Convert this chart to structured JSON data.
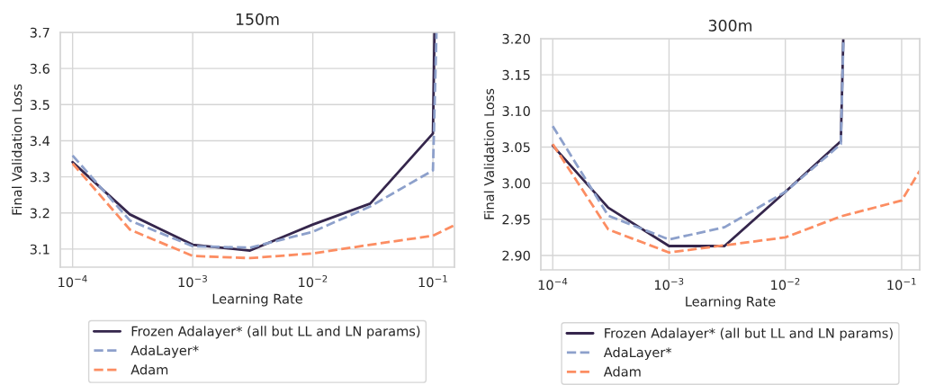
{
  "chart_data": [
    {
      "type": "line",
      "title": "150m",
      "xlabel": "Learning Rate",
      "ylabel": "Final Validation Loss",
      "log": "x",
      "grid": true,
      "legend": "bottom",
      "xlim": [
        7.9e-05,
        0.151
      ],
      "ylim": [
        3.05,
        3.7
      ],
      "xticks": [
        {
          "value": 0.0001,
          "label": "10$^{−4}$"
        },
        {
          "value": 0.001,
          "label": "10$^{−3}$"
        },
        {
          "value": 0.01,
          "label": "10$^{−2}$"
        },
        {
          "value": 0.1,
          "label": "10$^{−1}$"
        }
      ],
      "yticks": [
        3.1,
        3.2,
        3.3,
        3.4,
        3.5,
        3.6,
        3.7
      ],
      "series": [
        {
          "name": "Frozen Adalayer* (all but LL and LN params)",
          "color": "#35264c",
          "line_style": "solid",
          "x": [
            0.0001,
            0.0003,
            0.001,
            0.003,
            0.01,
            0.03,
            0.1,
            0.103
          ],
          "values": [
            3.341,
            3.196,
            3.112,
            3.096,
            3.168,
            3.226,
            3.42,
            3.7
          ]
        },
        {
          "name": "AdaLayer*",
          "color": "#8da0cb",
          "line_style": "dashed",
          "x": [
            0.0001,
            0.0003,
            0.001,
            0.003,
            0.01,
            0.03,
            0.1,
            0.107
          ],
          "values": [
            3.359,
            3.179,
            3.108,
            3.104,
            3.148,
            3.218,
            3.318,
            3.7
          ]
        },
        {
          "name": "Adam",
          "color": "#fc8d62",
          "line_style": "dashed",
          "x": [
            0.0001,
            0.0003,
            0.001,
            0.003,
            0.01,
            0.03,
            0.1,
            0.151
          ],
          "values": [
            3.337,
            3.154,
            3.081,
            3.075,
            3.088,
            3.112,
            3.137,
            3.166
          ]
        }
      ]
    },
    {
      "type": "line",
      "title": "300m",
      "xlabel": "Learning Rate",
      "ylabel": "Final Validation Loss",
      "log": "x",
      "grid": true,
      "legend": "bottom",
      "xlim": [
        7.9e-05,
        0.143
      ],
      "ylim": [
        2.88,
        3.2
      ],
      "xticks": [
        {
          "value": 0.0001,
          "label": "10$^{−4}$"
        },
        {
          "value": 0.001,
          "label": "10$^{−3}$"
        },
        {
          "value": 0.01,
          "label": "10$^{−2}$"
        },
        {
          "value": 0.1,
          "label": "10$^{−1}$"
        }
      ],
      "yticks": [
        {
          "value": 2.9,
          "label": "2.90"
        },
        {
          "value": 2.95,
          "label": "2.95"
        },
        {
          "value": 3.0,
          "label": "3.00"
        },
        {
          "value": 3.05,
          "label": "3.05"
        },
        {
          "value": 3.1,
          "label": "3.10"
        },
        {
          "value": 3.15,
          "label": "3.15"
        },
        {
          "value": 3.2,
          "label": "3.20"
        }
      ],
      "series": [
        {
          "name": "Frozen Adalayer* (all but LL and LN params)",
          "color": "#35264c",
          "line_style": "solid",
          "x": [
            0.0001,
            0.0003,
            0.001,
            0.003,
            0.01,
            0.03,
            0.0315
          ],
          "values": [
            3.052,
            2.966,
            2.913,
            2.913,
            2.988,
            3.058,
            3.2
          ]
        },
        {
          "name": "AdaLayer*",
          "color": "#8da0cb",
          "line_style": "dashed",
          "x": [
            0.0001,
            0.0003,
            0.001,
            0.003,
            0.01,
            0.03,
            0.0316
          ],
          "values": [
            3.079,
            2.955,
            2.922,
            2.939,
            2.988,
            3.054,
            3.2
          ]
        },
        {
          "name": "Adam",
          "color": "#fc8d62",
          "line_style": "dashed",
          "x": [
            0.0001,
            0.0003,
            0.001,
            0.003,
            0.01,
            0.03,
            0.1,
            0.143
          ],
          "values": [
            3.054,
            2.936,
            2.904,
            2.914,
            2.925,
            2.954,
            2.976,
            3.017
          ]
        }
      ]
    }
  ]
}
